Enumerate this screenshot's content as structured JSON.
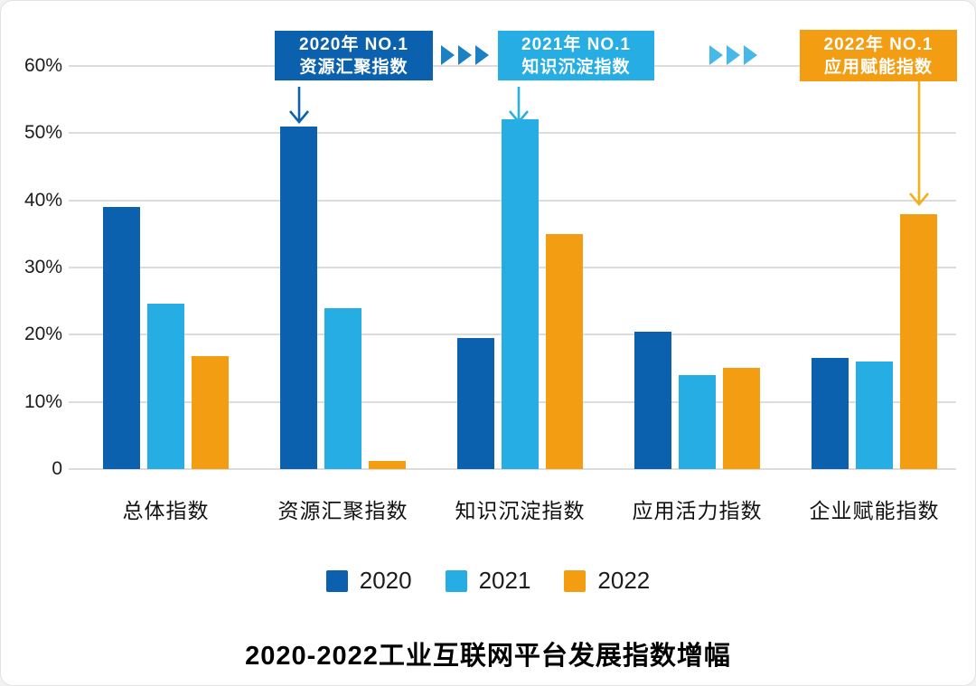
{
  "chart_data": {
    "type": "bar",
    "title": "2020-2022工业互联网平台发展指数增幅",
    "categories": [
      "总体指数",
      "资源汇聚指数",
      "知识沉淀指数",
      "应用活力指数",
      "企业赋能指数"
    ],
    "series": [
      {
        "name": "2020",
        "color": "#0b61ad",
        "values": [
          39,
          51,
          19.5,
          20.4,
          16.5
        ]
      },
      {
        "name": "2021",
        "color": "#26aee4",
        "values": [
          24.6,
          24,
          52,
          14,
          16
        ]
      },
      {
        "name": "2022",
        "color": "#f29d12",
        "values": [
          16.8,
          1.2,
          35,
          15.1,
          38
        ]
      }
    ],
    "ylabel": "",
    "xlabel": "",
    "ylim": [
      0,
      60
    ],
    "yticks": {
      "labels": [
        "60%",
        "50%",
        "40%",
        "30%",
        "20%",
        "10%",
        "0"
      ],
      "values": [
        60,
        50,
        40,
        30,
        20,
        10,
        0
      ]
    },
    "grid": true,
    "gridline_color": "#dcdcdc",
    "legend_position": "bottom",
    "annotations": [
      {
        "line1": "2020年  NO.1",
        "line2": "资源汇聚指数",
        "color": "#0b61ad",
        "arrow_color": "#0b61ad",
        "arrow_icon": "down-arrow",
        "target_category": "资源汇聚指数",
        "target_series": "2020"
      },
      {
        "line1": "2021年  NO.1",
        "line2": "知识沉淀指数",
        "color": "#26aee4",
        "arrow_color": "#29b0e2",
        "arrow_icon": "down-arrow",
        "target_category": "知识沉淀指数",
        "target_series": "2021"
      },
      {
        "line1": "2022年  NO.1",
        "line2": "应用赋能指数",
        "color": "#f29d12",
        "arrow_color": "#efb11c",
        "arrow_icon": "down-arrow",
        "target_category": "企业赋能指数",
        "target_series": "2022"
      }
    ],
    "connectors": [
      {
        "icon": "triple-chevron-right",
        "color": "#1b80c4"
      },
      {
        "icon": "triple-chevron-right",
        "color": "#47b9e9"
      }
    ]
  }
}
